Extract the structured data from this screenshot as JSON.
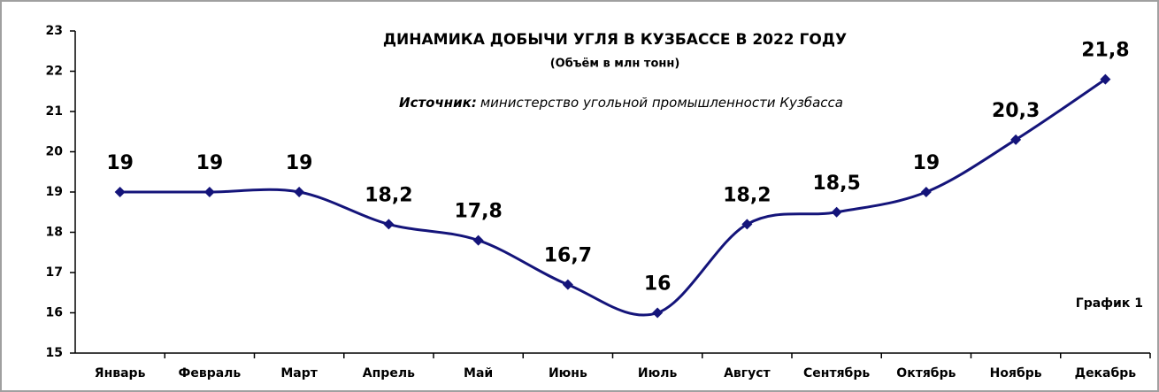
{
  "chart_data": {
    "type": "line",
    "title": "ДИНАМИКА ДОБЫЧИ УГЛЯ В КУЗБАССЕ В 2022 ГОДУ",
    "subtitle": "(Объём в млн тонн)",
    "source_label": "Источник:",
    "source_text": "министерство угольной промышленности Кузбасса",
    "annotation": "График 1",
    "categories": [
      "Январь",
      "Февраль",
      "Март",
      "Апрель",
      "Май",
      "Июнь",
      "Июль",
      "Август",
      "Сентябрь",
      "Октябрь",
      "Ноябрь",
      "Декабрь"
    ],
    "series": [
      {
        "color": "#14147a",
        "values": [
          19,
          19,
          19,
          18.2,
          17.8,
          16.7,
          16,
          18.2,
          18.5,
          19,
          20.3,
          21.8
        ],
        "value_labels": [
          "19",
          "19",
          "19",
          "18,2",
          "17,8",
          "16,7",
          "16",
          "18,2",
          "18,5",
          "19",
          "20,3",
          "21,8"
        ]
      }
    ],
    "ylim": [
      15,
      23
    ],
    "yticks": [
      15,
      16,
      17,
      18,
      19,
      20,
      21,
      22,
      23
    ],
    "grid": false,
    "smooth": true
  }
}
